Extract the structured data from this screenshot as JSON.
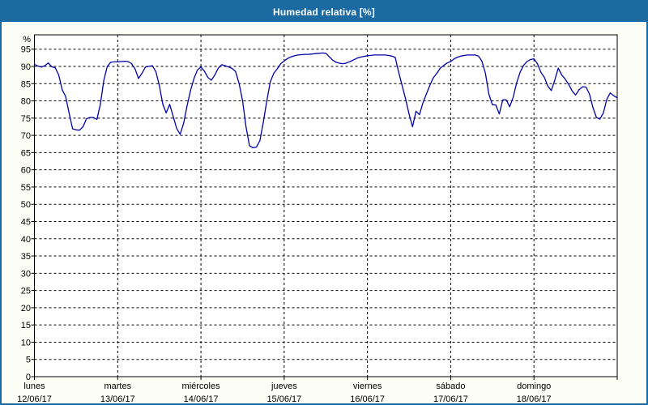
{
  "window": {
    "title": "Humedad relativa [%]",
    "frame_color": "#1b6ba2",
    "background_color": "#fcfef5"
  },
  "chart_data": {
    "type": "line",
    "title": "Humedad relativa [%]",
    "ylabel": "%",
    "ylim": [
      0,
      99.2
    ],
    "yticks": [
      0,
      5,
      10,
      15,
      20,
      25,
      30,
      35,
      40,
      45,
      50,
      55,
      60,
      65,
      70,
      75,
      80,
      85,
      90,
      95
    ],
    "grid": "dashed-black, horizontal every 5 units, vertical at day boundaries",
    "legend_position": "none",
    "plot_background": "#ffffff",
    "line_color": "#0000aa",
    "days": [
      {
        "name": "lunes",
        "date": "12/06/17"
      },
      {
        "name": "martes",
        "date": "13/06/17"
      },
      {
        "name": "miércoles",
        "date": "14/06/17"
      },
      {
        "name": "jueves",
        "date": "15/06/17"
      },
      {
        "name": "viernes",
        "date": "16/06/17"
      },
      {
        "name": "sábado",
        "date": "17/06/17"
      },
      {
        "name": "domingo",
        "date": "18/06/17"
      }
    ],
    "x_unit": "hours, 24 per day, Monday 00:00 to Sunday 24:00",
    "series": [
      {
        "name": "Humedad relativa [%]",
        "values_hourly": [
          90.6,
          90.1,
          89.8,
          90.2,
          91.0,
          89.9,
          89.6,
          87.5,
          83.2,
          81.3,
          76.5,
          71.9,
          71.6,
          71.5,
          72.5,
          74.8,
          75.2,
          75.2,
          74.6,
          79.0,
          86.0,
          90.0,
          91.2,
          91.3,
          91.3,
          91.4,
          91.5,
          91.4,
          90.8,
          89.3,
          86.5,
          88.0,
          89.8,
          90.0,
          90.2,
          88.5,
          84.5,
          79.0,
          76.5,
          79.0,
          75.5,
          72.0,
          70.3,
          73.5,
          78.5,
          83.0,
          86.5,
          89.0,
          89.8,
          88.6,
          86.8,
          86.0,
          87.5,
          89.5,
          90.5,
          90.2,
          89.8,
          89.4,
          88.5,
          85.0,
          80.0,
          72.5,
          67.0,
          66.4,
          66.6,
          68.5,
          74.0,
          80.0,
          85.5,
          88.0,
          89.3,
          90.8,
          91.6,
          92.3,
          92.8,
          93.1,
          93.3,
          93.4,
          93.5,
          93.5,
          93.6,
          93.7,
          93.8,
          93.9,
          93.8,
          92.8,
          91.8,
          91.2,
          90.9,
          90.8,
          91.0,
          91.4,
          91.9,
          92.4,
          92.7,
          92.9,
          93.1,
          93.2,
          93.3,
          93.3,
          93.3,
          93.3,
          93.2,
          93.0,
          92.6,
          88.3,
          84.4,
          80.5,
          76.2,
          72.5,
          77.0,
          76.0,
          79.5,
          82.0,
          84.5,
          86.7,
          88.0,
          89.5,
          90.3,
          91.0,
          91.4,
          92.2,
          92.7,
          93.0,
          93.2,
          93.3,
          93.3,
          93.3,
          93.0,
          91.5,
          88.0,
          82.0,
          78.9,
          78.8,
          76.2,
          80.3,
          80.3,
          78.3,
          81.0,
          85.2,
          88.3,
          90.3,
          91.4,
          92.0,
          92.2,
          90.8,
          88.3,
          86.8,
          84.3,
          83.0,
          86.0,
          89.5,
          87.5,
          86.3,
          84.8,
          82.9,
          81.7,
          83.2,
          84.1,
          84.0,
          82.0,
          78.1,
          75.2,
          74.7,
          76.5,
          80.5,
          82.3,
          81.5,
          80.9
        ]
      }
    ]
  }
}
